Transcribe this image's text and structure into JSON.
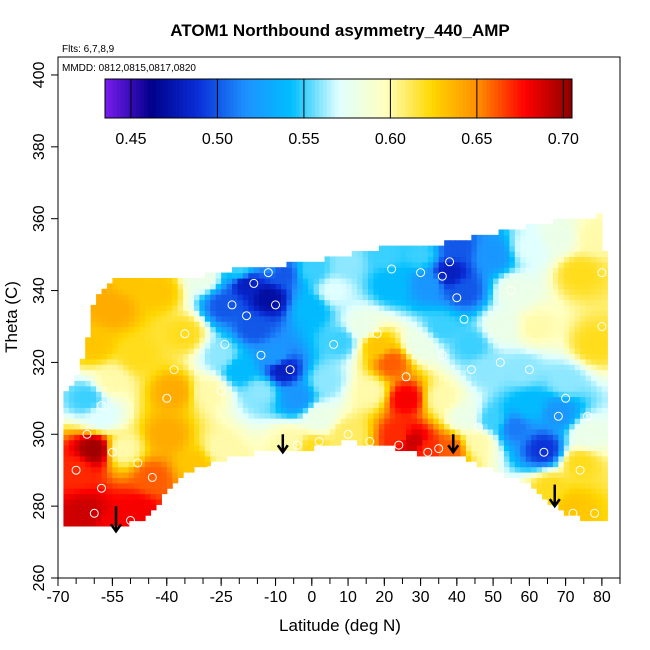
{
  "chart_data": {
    "type": "heatmap",
    "title": "ATOM1 Northbound asymmetry_440_AMP",
    "subtitle_flights": "Flts: 6,7,8,9",
    "subtitle_dates": "MMDD: 0812,0815,0817,0820",
    "xlabel": "Latitude (deg N)",
    "ylabel": "Theta (C)",
    "xlim": [
      -70,
      85
    ],
    "ylim": [
      260,
      405
    ],
    "x_ticks": [
      -70,
      -55,
      -40,
      -25,
      -10,
      0,
      10,
      20,
      30,
      40,
      50,
      60,
      70,
      80
    ],
    "x_tick_labels": [
      "-70",
      "-55",
      "-40",
      "-25",
      "-10",
      "0",
      "10",
      "20",
      "30",
      "40",
      "50",
      "60",
      "70",
      "80"
    ],
    "y_ticks": [
      260,
      280,
      300,
      320,
      340,
      360,
      380,
      400
    ],
    "y_tick_labels": [
      "260",
      "280",
      "300",
      "320",
      "340",
      "360",
      "380",
      "400"
    ],
    "colorbar": {
      "range": [
        0.435,
        0.705
      ],
      "ticks": [
        0.45,
        0.5,
        0.55,
        0.6,
        0.65,
        0.7
      ],
      "tick_labels": [
        "0.45",
        "0.50",
        "0.55",
        "0.60",
        "0.65",
        "0.70"
      ],
      "palette": [
        "#7a1cf0",
        "#00008b",
        "#0a2fd8",
        "#1e90ff",
        "#00bfff",
        "#e0ffff",
        "#ffffc0",
        "#ffd700",
        "#ff8c00",
        "#ff0000",
        "#8b0000"
      ]
    },
    "field_anchors": [
      {
        "x": -55,
        "y": 275,
        "v": 0.68
      },
      {
        "x": -62,
        "y": 278,
        "v": 0.69
      },
      {
        "x": -48,
        "y": 279,
        "v": 0.68
      },
      {
        "x": -65,
        "y": 290,
        "v": 0.67
      },
      {
        "x": -60,
        "y": 296,
        "v": 0.7
      },
      {
        "x": -52,
        "y": 296,
        "v": 0.6
      },
      {
        "x": -44,
        "y": 288,
        "v": 0.66
      },
      {
        "x": -40,
        "y": 300,
        "v": 0.64
      },
      {
        "x": -38,
        "y": 312,
        "v": 0.64
      },
      {
        "x": -58,
        "y": 305,
        "v": 0.57
      },
      {
        "x": -62,
        "y": 310,
        "v": 0.55
      },
      {
        "x": -55,
        "y": 315,
        "v": 0.6
      },
      {
        "x": -48,
        "y": 322,
        "v": 0.62
      },
      {
        "x": -55,
        "y": 335,
        "v": 0.64
      },
      {
        "x": -60,
        "y": 325,
        "v": 0.63
      },
      {
        "x": -42,
        "y": 340,
        "v": 0.63
      },
      {
        "x": -35,
        "y": 328,
        "v": 0.62
      },
      {
        "x": -32,
        "y": 292,
        "v": 0.63
      },
      {
        "x": -25,
        "y": 296,
        "v": 0.6
      },
      {
        "x": -28,
        "y": 312,
        "v": 0.6
      },
      {
        "x": -25,
        "y": 322,
        "v": 0.56
      },
      {
        "x": -24,
        "y": 336,
        "v": 0.5
      },
      {
        "x": -18,
        "y": 342,
        "v": 0.48
      },
      {
        "x": -16,
        "y": 330,
        "v": 0.5
      },
      {
        "x": -12,
        "y": 338,
        "v": 0.47
      },
      {
        "x": -8,
        "y": 345,
        "v": 0.5
      },
      {
        "x": -10,
        "y": 322,
        "v": 0.52
      },
      {
        "x": -8,
        "y": 318,
        "v": 0.48
      },
      {
        "x": -4,
        "y": 310,
        "v": 0.52
      },
      {
        "x": -14,
        "y": 312,
        "v": 0.56
      },
      {
        "x": -20,
        "y": 318,
        "v": 0.54
      },
      {
        "x": -6,
        "y": 298,
        "v": 0.6
      },
      {
        "x": 0,
        "y": 296,
        "v": 0.62
      },
      {
        "x": 2,
        "y": 305,
        "v": 0.58
      },
      {
        "x": 4,
        "y": 315,
        "v": 0.56
      },
      {
        "x": 6,
        "y": 340,
        "v": 0.57
      },
      {
        "x": 0,
        "y": 335,
        "v": 0.54
      },
      {
        "x": 8,
        "y": 326,
        "v": 0.55
      },
      {
        "x": 10,
        "y": 300,
        "v": 0.61
      },
      {
        "x": 14,
        "y": 330,
        "v": 0.58
      },
      {
        "x": 16,
        "y": 312,
        "v": 0.6
      },
      {
        "x": 18,
        "y": 325,
        "v": 0.63
      },
      {
        "x": 22,
        "y": 320,
        "v": 0.66
      },
      {
        "x": 26,
        "y": 310,
        "v": 0.68
      },
      {
        "x": 24,
        "y": 300,
        "v": 0.67
      },
      {
        "x": 28,
        "y": 298,
        "v": 0.69
      },
      {
        "x": 32,
        "y": 296,
        "v": 0.67
      },
      {
        "x": 30,
        "y": 325,
        "v": 0.58
      },
      {
        "x": 22,
        "y": 342,
        "v": 0.54
      },
      {
        "x": 32,
        "y": 342,
        "v": 0.52
      },
      {
        "x": 38,
        "y": 345,
        "v": 0.48
      },
      {
        "x": 42,
        "y": 340,
        "v": 0.5
      },
      {
        "x": 36,
        "y": 330,
        "v": 0.55
      },
      {
        "x": 44,
        "y": 325,
        "v": 0.55
      },
      {
        "x": 36,
        "y": 310,
        "v": 0.6
      },
      {
        "x": 42,
        "y": 305,
        "v": 0.58
      },
      {
        "x": 38,
        "y": 296,
        "v": 0.66
      },
      {
        "x": 46,
        "y": 298,
        "v": 0.6
      },
      {
        "x": 50,
        "y": 304,
        "v": 0.55
      },
      {
        "x": 48,
        "y": 318,
        "v": 0.56
      },
      {
        "x": 52,
        "y": 330,
        "v": 0.58
      },
      {
        "x": 56,
        "y": 340,
        "v": 0.58
      },
      {
        "x": 62,
        "y": 330,
        "v": 0.6
      },
      {
        "x": 58,
        "y": 318,
        "v": 0.56
      },
      {
        "x": 56,
        "y": 302,
        "v": 0.51
      },
      {
        "x": 64,
        "y": 296,
        "v": 0.49
      },
      {
        "x": 60,
        "y": 308,
        "v": 0.54
      },
      {
        "x": 68,
        "y": 306,
        "v": 0.52
      },
      {
        "x": 70,
        "y": 315,
        "v": 0.56
      },
      {
        "x": 66,
        "y": 285,
        "v": 0.62
      },
      {
        "x": 72,
        "y": 280,
        "v": 0.63
      },
      {
        "x": 74,
        "y": 292,
        "v": 0.62
      },
      {
        "x": 76,
        "y": 300,
        "v": 0.58
      },
      {
        "x": 78,
        "y": 325,
        "v": 0.62
      },
      {
        "x": 74,
        "y": 345,
        "v": 0.62
      },
      {
        "x": 78,
        "y": 355,
        "v": 0.6
      },
      {
        "x": 68,
        "y": 355,
        "v": 0.58
      },
      {
        "x": 60,
        "y": 352,
        "v": 0.57
      },
      {
        "x": 50,
        "y": 350,
        "v": 0.52
      },
      {
        "x": 40,
        "y": 352,
        "v": 0.5
      },
      {
        "x": 30,
        "y": 350,
        "v": 0.55
      },
      {
        "x": 20,
        "y": 350,
        "v": 0.55
      },
      {
        "x": 10,
        "y": 348,
        "v": 0.56
      },
      {
        "x": 0,
        "y": 346,
        "v": 0.55
      },
      {
        "x": -10,
        "y": 348,
        "v": 0.52
      },
      {
        "x": -20,
        "y": 346,
        "v": 0.55
      },
      {
        "x": -30,
        "y": 344,
        "v": 0.58
      },
      {
        "x": -50,
        "y": 344,
        "v": 0.63
      },
      {
        "x": -62,
        "y": 340,
        "v": 0.64
      }
    ],
    "observation_points": [
      {
        "x": -56,
        "y": 273
      },
      {
        "x": -60,
        "y": 278
      },
      {
        "x": -50,
        "y": 276
      },
      {
        "x": -58,
        "y": 285
      },
      {
        "x": -65,
        "y": 290
      },
      {
        "x": -55,
        "y": 295
      },
      {
        "x": -48,
        "y": 292
      },
      {
        "x": -62,
        "y": 300
      },
      {
        "x": -58,
        "y": 308
      },
      {
        "x": -44,
        "y": 288
      },
      {
        "x": -40,
        "y": 310
      },
      {
        "x": -38,
        "y": 318
      },
      {
        "x": -35,
        "y": 328
      },
      {
        "x": -28,
        "y": 290
      },
      {
        "x": -25,
        "y": 312
      },
      {
        "x": -24,
        "y": 325
      },
      {
        "x": -22,
        "y": 336
      },
      {
        "x": -18,
        "y": 333
      },
      {
        "x": -16,
        "y": 342
      },
      {
        "x": -12,
        "y": 345
      },
      {
        "x": -10,
        "y": 336
      },
      {
        "x": -14,
        "y": 322
      },
      {
        "x": -6,
        "y": 318
      },
      {
        "x": -4,
        "y": 297
      },
      {
        "x": 2,
        "y": 298
      },
      {
        "x": 6,
        "y": 325
      },
      {
        "x": 10,
        "y": 300
      },
      {
        "x": 16,
        "y": 298
      },
      {
        "x": 18,
        "y": 328
      },
      {
        "x": 22,
        "y": 346
      },
      {
        "x": 26,
        "y": 316
      },
      {
        "x": 24,
        "y": 297
      },
      {
        "x": 32,
        "y": 295
      },
      {
        "x": 35,
        "y": 296
      },
      {
        "x": 30,
        "y": 345
      },
      {
        "x": 36,
        "y": 344
      },
      {
        "x": 38,
        "y": 348
      },
      {
        "x": 40,
        "y": 338
      },
      {
        "x": 42,
        "y": 332
      },
      {
        "x": 36,
        "y": 322
      },
      {
        "x": 44,
        "y": 318
      },
      {
        "x": 46,
        "y": 302
      },
      {
        "x": 52,
        "y": 320
      },
      {
        "x": 55,
        "y": 340
      },
      {
        "x": 60,
        "y": 318
      },
      {
        "x": 64,
        "y": 295
      },
      {
        "x": 68,
        "y": 305
      },
      {
        "x": 70,
        "y": 310
      },
      {
        "x": 72,
        "y": 278
      },
      {
        "x": 74,
        "y": 290
      },
      {
        "x": 78,
        "y": 278
      },
      {
        "x": 80,
        "y": 330
      },
      {
        "x": 80,
        "y": 345
      },
      {
        "x": 76,
        "y": 305
      }
    ],
    "arrows": [
      {
        "x": -54,
        "y_top": 280,
        "y_bottom": 273
      },
      {
        "x": -8,
        "y_top": 300,
        "y_bottom": 295
      },
      {
        "x": 39,
        "y_top": 300,
        "y_bottom": 295
      },
      {
        "x": 67,
        "y_top": 286,
        "y_bottom": 280
      }
    ],
    "coverage_outline": [
      [
        -69,
        274
      ],
      [
        -55,
        274
      ],
      [
        -47,
        276
      ],
      [
        -35,
        289
      ],
      [
        -25,
        293
      ],
      [
        -10,
        296
      ],
      [
        0,
        296
      ],
      [
        10,
        298
      ],
      [
        20,
        297
      ],
      [
        32,
        294
      ],
      [
        40,
        294
      ],
      [
        50,
        290
      ],
      [
        60,
        286
      ],
      [
        67,
        280
      ],
      [
        72,
        277
      ],
      [
        78,
        276
      ],
      [
        81,
        276
      ],
      [
        81,
        348
      ],
      [
        80,
        362
      ],
      [
        78,
        360
      ],
      [
        70,
        360
      ],
      [
        60,
        358
      ],
      [
        50,
        356
      ],
      [
        40,
        354
      ],
      [
        30,
        352
      ],
      [
        20,
        352
      ],
      [
        10,
        350
      ],
      [
        0,
        348
      ],
      [
        -10,
        347
      ],
      [
        -20,
        346
      ],
      [
        -30,
        344
      ],
      [
        -40,
        343
      ],
      [
        -55,
        343
      ],
      [
        -60,
        338
      ],
      [
        -62,
        325
      ],
      [
        -65,
        315
      ],
      [
        -69,
        310
      ]
    ]
  }
}
